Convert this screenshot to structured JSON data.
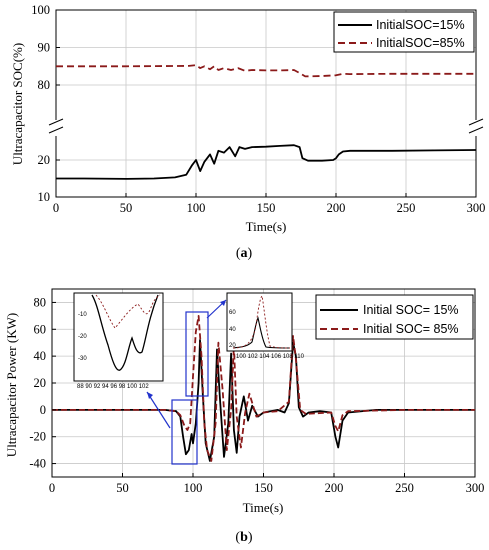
{
  "chart_data": [
    {
      "type": "line",
      "caption": "(a)",
      "xlabel": "Time(s)",
      "ylabel": "Ultracapacitor SOC(%)",
      "xlim": [
        0,
        300
      ],
      "axis_break": true,
      "yticks_upper": [
        "100",
        "90",
        "80"
      ],
      "yticks_lower": [
        "20",
        "10"
      ],
      "xticks": [
        "0",
        "50",
        "100",
        "150",
        "200",
        "250",
        "300"
      ],
      "grid": true,
      "legend_position": "top-right",
      "series": [
        {
          "name": "InitialSOC=15%",
          "style": "solid",
          "color": "#000000",
          "x": [
            0,
            20,
            50,
            70,
            85,
            93,
            97,
            100,
            103,
            106,
            110,
            113,
            116,
            120,
            124,
            128,
            131,
            135,
            140,
            150,
            160,
            170,
            174,
            176,
            180,
            190,
            198,
            200,
            202,
            205,
            210,
            240,
            270,
            300
          ],
          "y": [
            15.0,
            15.0,
            14.9,
            15.0,
            15.3,
            16.0,
            18.5,
            20.0,
            17.0,
            19.5,
            21.5,
            19.0,
            22.5,
            22.0,
            23.5,
            21.0,
            23.5,
            23.0,
            23.5,
            23.6,
            23.8,
            24.0,
            23.5,
            20.5,
            19.8,
            19.8,
            20.0,
            20.5,
            21.5,
            22.3,
            22.5,
            22.5,
            22.6,
            22.7
          ]
        },
        {
          "name": "InitialSOC=85%",
          "style": "dashed",
          "color": "#8b1a1a",
          "x": [
            0,
            50,
            95,
            100,
            103,
            106,
            110,
            113,
            116,
            120,
            125,
            130,
            135,
            140,
            150,
            160,
            170,
            175,
            178,
            190,
            200,
            205,
            210,
            240,
            270,
            300
          ],
          "y": [
            85.0,
            85.0,
            85.1,
            85.3,
            84.5,
            85.0,
            84.2,
            85.0,
            84.0,
            84.5,
            84.0,
            84.5,
            83.8,
            84.0,
            83.9,
            83.9,
            84.0,
            83.0,
            82.3,
            82.4,
            82.6,
            83.0,
            82.9,
            83.0,
            83.0,
            83.0
          ]
        }
      ]
    },
    {
      "type": "line",
      "caption": "(b)",
      "xlabel": "Time(s)",
      "ylabel": "Ultracapacitor Power (KW)",
      "xlim": [
        0,
        300
      ],
      "ylim": [
        -50,
        90
      ],
      "yticks": [
        80,
        60,
        40,
        20,
        0,
        -20,
        -40
      ],
      "xticks": [
        0,
        50,
        100,
        150,
        200,
        250,
        300
      ],
      "grid": true,
      "legend_position": "top-right",
      "series": [
        {
          "name": "Initial SOC= 15%",
          "style": "solid",
          "color": "#000000",
          "x": [
            0,
            40,
            80,
            88,
            91,
            93,
            95,
            97,
            99,
            100,
            102,
            104,
            105,
            107,
            109,
            112,
            115,
            117,
            119,
            122,
            125,
            127,
            129,
            131,
            133,
            136,
            139,
            142,
            146,
            150,
            155,
            160,
            165,
            168,
            171,
            173,
            175,
            178,
            182,
            190,
            198,
            201,
            203,
            206,
            210,
            230,
            260,
            300
          ],
          "y": [
            0,
            0,
            0,
            -1,
            -5,
            -20,
            -33,
            -30,
            -18,
            -25,
            -10,
            20,
            52,
            10,
            -25,
            -38,
            -20,
            45,
            10,
            -35,
            -10,
            42,
            -15,
            -32,
            -5,
            10,
            -8,
            3,
            -5,
            -2,
            -1,
            0,
            -2,
            5,
            50,
            40,
            2,
            -5,
            -2,
            -1,
            -2,
            -20,
            -28,
            -8,
            -2,
            0,
            0,
            0
          ]
        },
        {
          "name": "Initial SOC= 85%",
          "style": "dashed",
          "color": "#8b1a1a",
          "x": [
            0,
            40,
            80,
            88,
            91,
            94,
            96,
            98,
            100,
            102,
            104,
            106,
            108,
            110,
            113,
            116,
            118,
            121,
            124,
            127,
            129,
            131,
            134,
            137,
            140,
            145,
            150,
            160,
            168,
            171,
            173,
            176,
            180,
            198,
            201,
            203,
            206,
            210,
            250,
            300
          ],
          "y": [
            0,
            0,
            0,
            -1,
            -4,
            -12,
            -15,
            -10,
            25,
            58,
            70,
            40,
            -10,
            -30,
            -38,
            -10,
            50,
            15,
            -30,
            0,
            48,
            -5,
            -28,
            -2,
            12,
            -5,
            -2,
            -1,
            6,
            55,
            38,
            0,
            -3,
            -2,
            -12,
            -16,
            -4,
            -1,
            0,
            0
          ]
        }
      ]
    }
  ]
}
